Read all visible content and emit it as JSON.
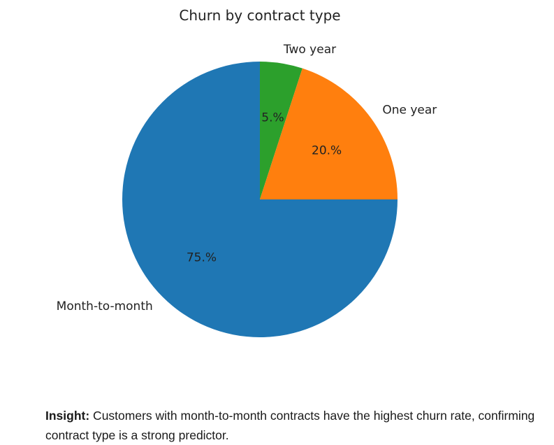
{
  "chart_data": {
    "type": "pie",
    "title": "Churn by contract type",
    "categories": [
      "Two year",
      "One year",
      "Month-to-month"
    ],
    "values": [
      5,
      20,
      75
    ],
    "percent_labels": [
      "5.%",
      "20.%",
      "75.%"
    ],
    "colors": [
      "#2ca02c",
      "#ff7f0e",
      "#1f77b4"
    ],
    "start_angle_deg": 90,
    "direction": "clockwise"
  },
  "insight": {
    "label": "Insight:",
    "text": " Customers with month-to-month contracts have the highest churn rate, confirming contract type is a strong predictor."
  }
}
